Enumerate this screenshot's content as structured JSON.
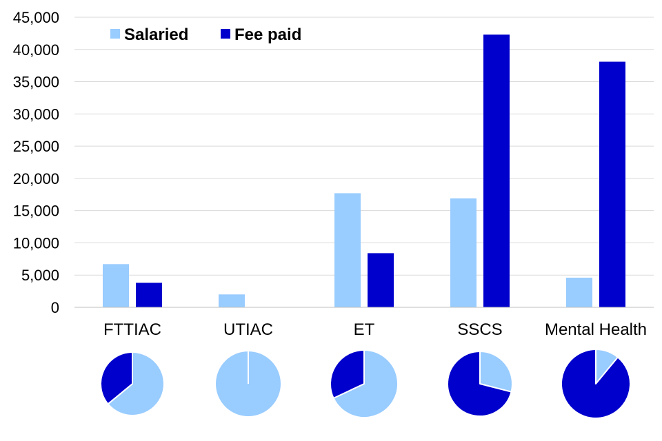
{
  "chart_data": {
    "type": "bar",
    "categories": [
      "FTTIAC",
      "UTIAC",
      "ET",
      "SSCS",
      "Mental Health"
    ],
    "series": [
      {
        "name": "Salaried",
        "color": "#99ccff",
        "values": [
          6700,
          2000,
          17700,
          16900,
          4600
        ]
      },
      {
        "name": "Fee paid",
        "color": "#0000cc",
        "values": [
          3800,
          0,
          8400,
          42300,
          38100
        ]
      }
    ],
    "ylim": [
      0,
      45000
    ],
    "yticks": [
      0,
      5000,
      10000,
      15000,
      20000,
      25000,
      30000,
      35000,
      40000,
      45000
    ],
    "ytick_labels": [
      "0",
      "5,000",
      "10,000",
      "15,000",
      "20,000",
      "25,000",
      "30,000",
      "35,000",
      "40,000",
      "45,000"
    ],
    "grid": true,
    "legend_position": "top-left",
    "pies": {
      "type": "pie",
      "note_series": [
        "Salaried",
        "Fee paid"
      ],
      "salaried_share": [
        0.64,
        1.0,
        0.68,
        0.29,
        0.11
      ]
    }
  }
}
